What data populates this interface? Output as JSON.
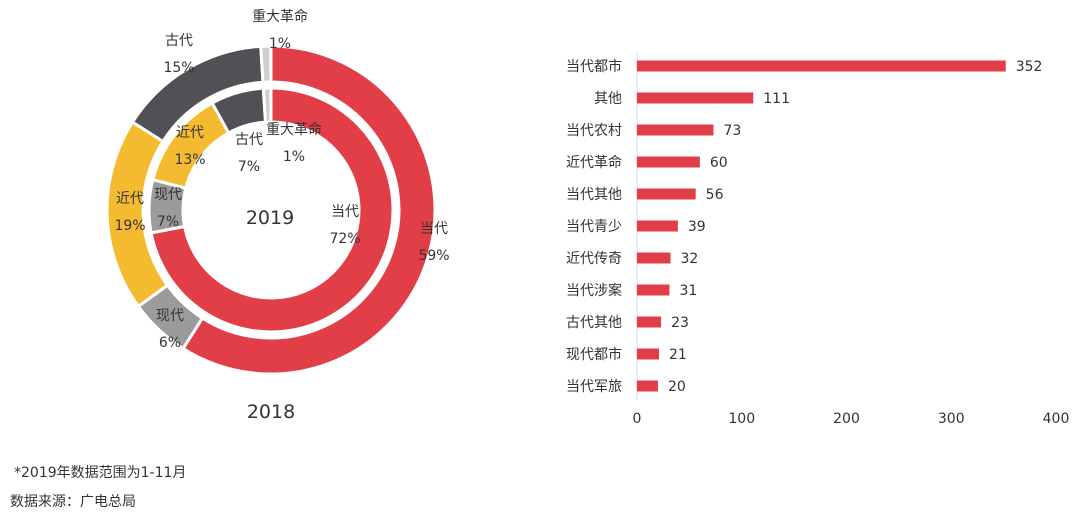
{
  "chart_data": [
    {
      "type": "pie",
      "subtype": "nested-donut",
      "center_label": "2019",
      "bottom_label": "2018",
      "rings": [
        {
          "name": "2019",
          "ring": "inner",
          "slices": [
            {
              "label": "当代",
              "value": 72,
              "pct": "72%",
              "color": "#e23e48"
            },
            {
              "label": "现代",
              "value": 7,
              "pct": "7%",
              "color": "#9b9b9b"
            },
            {
              "label": "近代",
              "value": 13,
              "pct": "13%",
              "color": "#f5bb30"
            },
            {
              "label": "古代",
              "value": 7,
              "pct": "7%",
              "color": "#505055"
            },
            {
              "label": "重大革命",
              "value": 1,
              "pct": "1%",
              "color": "#d0d0d0"
            }
          ]
        },
        {
          "name": "2018",
          "ring": "outer",
          "slices": [
            {
              "label": "当代",
              "value": 59,
              "pct": "59%",
              "color": "#e23e48"
            },
            {
              "label": "现代",
              "value": 6,
              "pct": "6%",
              "color": "#9b9b9b"
            },
            {
              "label": "近代",
              "value": 19,
              "pct": "19%",
              "color": "#f5bb30"
            },
            {
              "label": "古代",
              "value": 15,
              "pct": "15%",
              "color": "#505055"
            },
            {
              "label": "重大革命",
              "value": 1,
              "pct": "1%",
              "color": "#d0d0d0"
            }
          ]
        }
      ]
    },
    {
      "type": "bar",
      "orientation": "horizontal",
      "categories": [
        "当代都市",
        "其他",
        "当代农村",
        "近代革命",
        "当代其他",
        "当代青少",
        "近代传奇",
        "当代涉案",
        "古代其他",
        "现代都市",
        "当代军旅"
      ],
      "values": [
        352,
        111,
        73,
        60,
        56,
        39,
        32,
        31,
        23,
        21,
        20
      ],
      "xlim": [
        0,
        400
      ],
      "xticks": [
        0,
        100,
        200,
        300,
        400
      ],
      "color": "#e23e48",
      "grid": false
    }
  ],
  "notes": {
    "footnote": "*2019年数据范围为1-11月",
    "source": "数据来源：广电总局"
  }
}
